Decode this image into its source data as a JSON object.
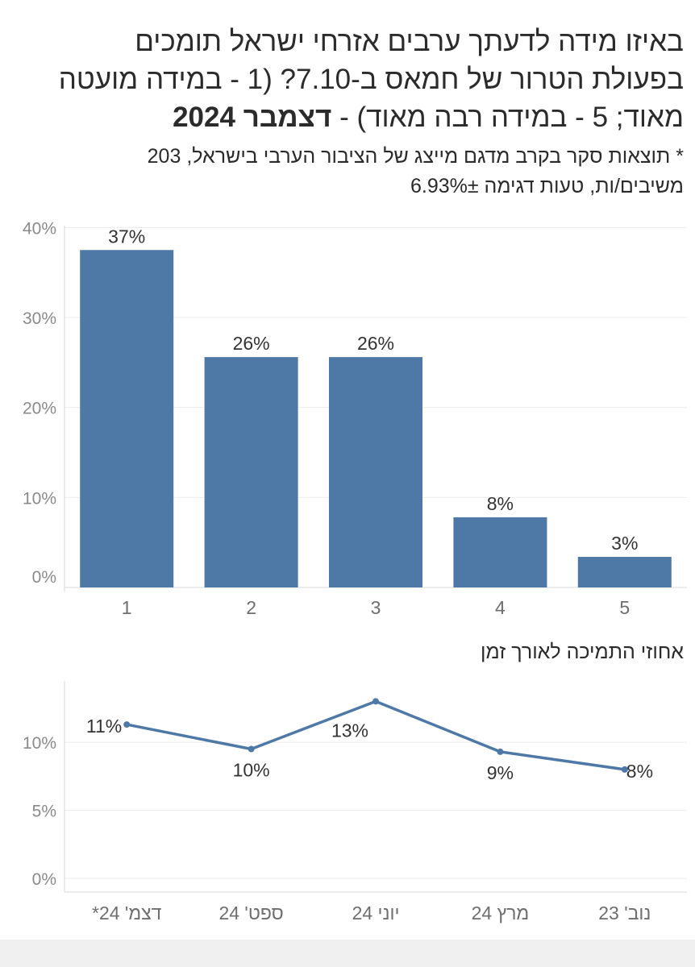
{
  "title": {
    "line1": "באיזו מידה לדעתך ערבים אזרחי ישראל תומכים",
    "line2": "בפעולת הטרור של חמאס ב-7.10? (1 - במידה מועטה",
    "line3_prefix": "מאוד; 5 - במידה רבה מאוד) - ",
    "line3_bold": "דצמבר 2024"
  },
  "subtitle": {
    "line1": "* תוצאות סקר בקרב מדגם מייצג של הציבור הערבי בישראל, 203",
    "line2": "משיבים/ות, טעות דגימה 6.93%±"
  },
  "line_chart_title": "אחוזי התמיכה לאורך זמן",
  "chart_data": [
    {
      "type": "bar",
      "categories": [
        "1",
        "2",
        "3",
        "4",
        "5"
      ],
      "values": [
        37,
        26,
        26,
        8,
        3
      ],
      "bar_heights": [
        37.5,
        25.6,
        25.6,
        7.8,
        3.4
      ],
      "data_labels": [
        "37%",
        "26%",
        "26%",
        "8%",
        "3%"
      ],
      "yticks": [
        0,
        10,
        20,
        30,
        40
      ],
      "ytick_labels": [
        "0%",
        "10%",
        "20%",
        "30%",
        "40%"
      ],
      "ylim": [
        0,
        42
      ],
      "color": "#4e79a7",
      "grid": true
    },
    {
      "type": "line",
      "categories": [
        "דצמ' 24*",
        "ספט' 24",
        "יוני 24",
        "מרץ 24",
        "נוב' 23"
      ],
      "values": [
        11.3,
        9.5,
        13.0,
        9.3,
        8.0
      ],
      "data_labels": [
        "11%",
        "10%",
        "13%",
        "9%",
        "8%"
      ],
      "yticks": [
        0,
        5,
        10
      ],
      "ytick_labels": [
        "0%",
        "5%",
        "10%"
      ],
      "ylim": [
        -1,
        14.5
      ],
      "color": "#4e79a7",
      "grid": true
    }
  ]
}
